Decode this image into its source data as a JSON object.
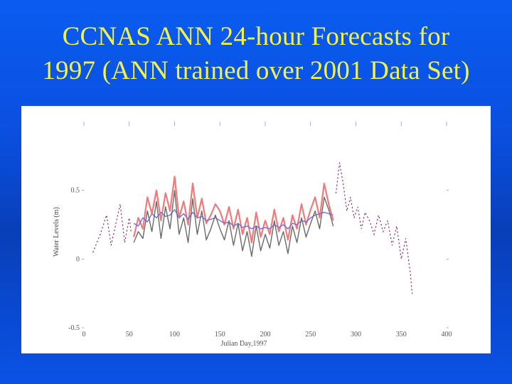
{
  "slide": {
    "title_line1": "CCNAS ANN 24-hour Forecasts for",
    "title_line2": "1997 (ANN trained over 2001 Data Set)",
    "title_color": "#f2f24a",
    "background_color": "#0a4fe0"
  },
  "chart_data": {
    "type": "line",
    "title": "",
    "xlabel": "Julian Day,1997",
    "ylabel": "Water Levels (m)",
    "xlim": [
      0,
      400
    ],
    "ylim": [
      -0.5,
      1.0
    ],
    "x_ticks": [
      0,
      50,
      100,
      150,
      200,
      250,
      300,
      350,
      400
    ],
    "x_tick_labels": [
      "0",
      "50",
      "100",
      "150",
      "200",
      "250",
      "300",
      "350",
      "400"
    ],
    "y_ticks": [
      -0.5,
      0,
      0.5
    ],
    "y_tick_labels": [
      "-0.5",
      "0",
      "0.5"
    ],
    "grid": false,
    "legend": "none",
    "series": [
      {
        "style": "solid",
        "color": "#f07a7a",
        "x": [
          55,
          60,
          65,
          70,
          75,
          80,
          85,
          90,
          95,
          100,
          105,
          110,
          115,
          120,
          125,
          130,
          135,
          140,
          145,
          150,
          155,
          160,
          165,
          170,
          175,
          180,
          185,
          190,
          195,
          200,
          205,
          210,
          215,
          220,
          225,
          230,
          235,
          240,
          245,
          250,
          255,
          260,
          265,
          270,
          275
        ],
        "y": [
          0.16,
          0.3,
          0.22,
          0.45,
          0.33,
          0.5,
          0.28,
          0.48,
          0.35,
          0.6,
          0.3,
          0.42,
          0.25,
          0.55,
          0.3,
          0.44,
          0.26,
          0.32,
          0.4,
          0.35,
          0.25,
          0.38,
          0.22,
          0.36,
          0.18,
          0.3,
          0.12,
          0.34,
          0.16,
          0.28,
          0.18,
          0.36,
          0.2,
          0.3,
          0.14,
          0.32,
          0.22,
          0.4,
          0.25,
          0.36,
          0.45,
          0.3,
          0.55,
          0.4,
          0.28
        ]
      },
      {
        "style": "solid",
        "color": "#6f6fe8",
        "x": [
          55,
          60,
          65,
          70,
          75,
          80,
          85,
          90,
          95,
          100,
          105,
          110,
          115,
          120,
          125,
          130,
          135,
          140,
          145,
          150,
          155,
          160,
          165,
          170,
          175,
          180,
          185,
          190,
          195,
          200,
          205,
          210,
          215,
          220,
          225,
          230,
          235,
          240,
          245,
          250,
          255,
          260,
          265,
          270,
          275
        ],
        "y": [
          0.26,
          0.24,
          0.3,
          0.27,
          0.33,
          0.3,
          0.34,
          0.31,
          0.32,
          0.36,
          0.3,
          0.33,
          0.29,
          0.34,
          0.3,
          0.31,
          0.28,
          0.29,
          0.3,
          0.28,
          0.26,
          0.27,
          0.24,
          0.26,
          0.23,
          0.24,
          0.22,
          0.24,
          0.22,
          0.23,
          0.22,
          0.25,
          0.23,
          0.25,
          0.22,
          0.26,
          0.25,
          0.28,
          0.27,
          0.3,
          0.32,
          0.33,
          0.34,
          0.33,
          0.32
        ]
      },
      {
        "style": "solid",
        "color": "#6a6a6a",
        "x": [
          55,
          60,
          65,
          70,
          75,
          80,
          85,
          90,
          95,
          100,
          105,
          110,
          115,
          120,
          125,
          130,
          135,
          140,
          145,
          150,
          155,
          160,
          165,
          170,
          175,
          180,
          185,
          190,
          195,
          200,
          205,
          210,
          215,
          220,
          225,
          230,
          235,
          240,
          245,
          250,
          255,
          260,
          265,
          270,
          275
        ],
        "y": [
          0.12,
          0.2,
          0.15,
          0.35,
          0.2,
          0.42,
          0.15,
          0.38,
          0.22,
          0.5,
          0.18,
          0.3,
          0.12,
          0.44,
          0.18,
          0.35,
          0.14,
          0.22,
          0.32,
          0.22,
          0.14,
          0.28,
          0.1,
          0.26,
          0.06,
          0.2,
          0.02,
          0.24,
          0.06,
          0.18,
          0.08,
          0.28,
          0.1,
          0.2,
          0.04,
          0.24,
          0.12,
          0.3,
          0.16,
          0.26,
          0.35,
          0.22,
          0.45,
          0.36,
          0.24
        ]
      },
      {
        "style": "dotted",
        "color": "#8a2a6a",
        "x": [
          10,
          18,
          25,
          30,
          35,
          40,
          45,
          50,
          52
        ],
        "y": [
          0.05,
          0.18,
          0.32,
          0.1,
          0.25,
          0.4,
          0.12,
          0.3,
          0.2
        ]
      },
      {
        "style": "dotted",
        "color": "#8a2a6a",
        "x": [
          278,
          282,
          286,
          290,
          294,
          298,
          302,
          306,
          310,
          315,
          320,
          325,
          330,
          335,
          340,
          345,
          350,
          355,
          360,
          362
        ],
        "y": [
          0.48,
          0.7,
          0.55,
          0.35,
          0.45,
          0.3,
          0.38,
          0.22,
          0.34,
          0.28,
          0.18,
          0.32,
          0.2,
          0.28,
          0.1,
          0.24,
          0.0,
          0.15,
          -0.1,
          -0.25
        ]
      }
    ]
  }
}
